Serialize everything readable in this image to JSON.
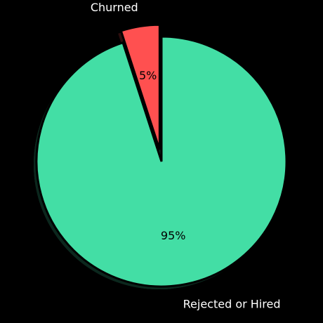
{
  "background_color": "#000000",
  "chart_data": {
    "type": "pie",
    "title": "",
    "start_angle_deg": 90,
    "direction": "counterclockwise",
    "shadow": true,
    "slices": [
      {
        "label": "Churned",
        "value": 5,
        "pct_label": "5%",
        "color": "#ff5050",
        "exploded": true,
        "edge_color": "#000000",
        "label_color": "#ffffff",
        "pct_color": "#000000"
      },
      {
        "label": "Rejected or Hired",
        "value": 95,
        "pct_label": "95%",
        "color": "#43dea5",
        "exploded": false,
        "edge_color": "#000000",
        "label_color": "#ffffff",
        "pct_color": "#000000"
      }
    ]
  }
}
